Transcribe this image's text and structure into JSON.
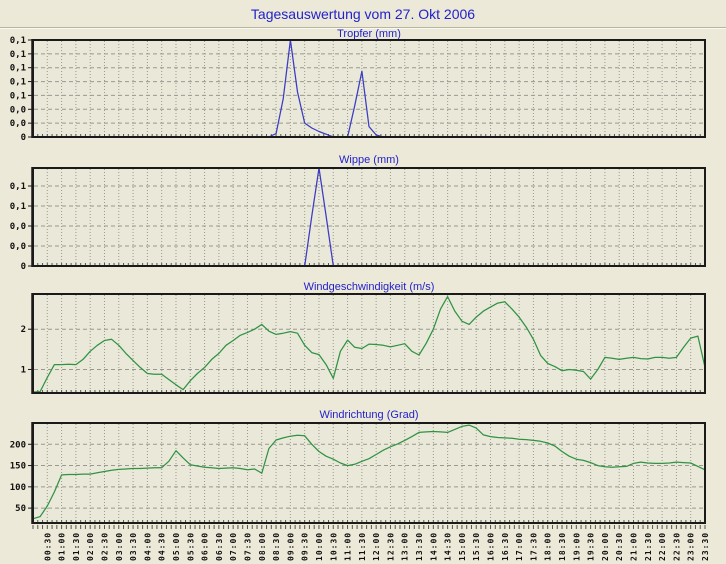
{
  "page": {
    "title": "Tagesauswertung vom 27. Okt 2006"
  },
  "colors": {
    "background": "#ece9d8",
    "plot_background": "#e9e8d9",
    "frame": "#1a1a1a",
    "grid": "#99998f",
    "minor_tick": "#55544a",
    "rain_line": "#3b3bc4",
    "wind_line": "#2f9342",
    "title_blue": "#2222cc",
    "tick_text": "#111111"
  },
  "x_axis": {
    "start": "00:00",
    "end": "23:30",
    "label_step_minutes": 30,
    "minor_tick_minutes": 10,
    "labels": [
      "00:30",
      "01:00",
      "01:30",
      "02:00",
      "02:30",
      "03:00",
      "03:30",
      "04:00",
      "04:30",
      "05:00",
      "05:30",
      "06:00",
      "06:30",
      "07:00",
      "07:30",
      "08:00",
      "08:30",
      "09:00",
      "09:30",
      "10:00",
      "10:30",
      "11:00",
      "11:30",
      "12:00",
      "12:30",
      "13:00",
      "13:30",
      "14:00",
      "14:30",
      "15:00",
      "15:30",
      "16:00",
      "16:30",
      "17:00",
      "17:30",
      "18:00",
      "18:30",
      "19:00",
      "19:30",
      "20:00",
      "20:30",
      "21:00",
      "21:30",
      "22:00",
      "22:30",
      "23:00",
      "23:30"
    ]
  },
  "chart_data": [
    {
      "type": "line",
      "id": "tropfer",
      "title": "Tropfer (mm)",
      "color": "#3b3bc4",
      "ylim": [
        0,
        0.14
      ],
      "y_ticks": [
        {
          "value": 0.14,
          "label": "0,1"
        },
        {
          "value": 0.12,
          "label": "0,1"
        },
        {
          "value": 0.1,
          "label": "0,1"
        },
        {
          "value": 0.08,
          "label": "0,1"
        },
        {
          "value": 0.06,
          "label": "0,1"
        },
        {
          "value": 0.04,
          "label": "0,0"
        },
        {
          "value": 0.02,
          "label": "0,0"
        },
        {
          "value": 0,
          "label": "0"
        }
      ],
      "x_start": "00:00",
      "x_step_minutes": 15,
      "values": [
        0,
        0,
        0,
        0,
        0,
        0,
        0,
        0,
        0,
        0,
        0,
        0,
        0,
        0,
        0,
        0,
        0,
        0,
        0,
        0,
        0,
        0,
        0,
        0,
        0,
        0,
        0,
        0,
        0,
        0,
        0,
        0,
        0,
        0,
        0.005,
        0.055,
        0.14,
        0.065,
        0.02,
        0.013,
        0.008,
        0.004,
        0,
        0,
        0,
        0.045,
        0.095,
        0.015,
        0.003,
        0,
        0,
        0,
        0,
        0,
        0,
        0,
        0,
        0,
        0,
        0,
        0,
        0,
        0,
        0,
        0,
        0,
        0,
        0,
        0,
        0,
        0,
        0,
        0,
        0,
        0,
        0,
        0,
        0,
        0,
        0,
        0,
        0,
        0,
        0,
        0,
        0,
        0,
        0,
        0,
        0,
        0,
        0,
        0,
        0,
        0
      ]
    },
    {
      "type": "line",
      "id": "wippe",
      "title": "Wippe (mm)",
      "color": "#3b3bc4",
      "ylim": [
        0,
        0.098
      ],
      "y_ticks": [
        {
          "value": 0.08,
          "label": "0,1"
        },
        {
          "value": 0.06,
          "label": "0,1"
        },
        {
          "value": 0.04,
          "label": "0,0"
        },
        {
          "value": 0.02,
          "label": "0,0"
        },
        {
          "value": 0,
          "label": "0"
        }
      ],
      "x_start": "00:00",
      "x_step_minutes": 15,
      "values": [
        0,
        0,
        0,
        0,
        0,
        0,
        0,
        0,
        0,
        0,
        0,
        0,
        0,
        0,
        0,
        0,
        0,
        0,
        0,
        0,
        0,
        0,
        0,
        0,
        0,
        0,
        0,
        0,
        0,
        0,
        0,
        0,
        0,
        0,
        0,
        0,
        0,
        0,
        0,
        0.05,
        0.098,
        0.05,
        0,
        0,
        0,
        0,
        0,
        0,
        0,
        0,
        0,
        0,
        0,
        0,
        0,
        0,
        0,
        0,
        0,
        0,
        0,
        0,
        0,
        0,
        0,
        0,
        0,
        0,
        0,
        0,
        0,
        0,
        0,
        0,
        0,
        0,
        0,
        0,
        0,
        0,
        0,
        0,
        0,
        0,
        0,
        0,
        0,
        0,
        0,
        0,
        0,
        0,
        0,
        0,
        0
      ]
    },
    {
      "type": "line",
      "id": "windgeschwindigkeit",
      "title": "Windgeschwindigkeit (m/s)",
      "color": "#2f9342",
      "ylim": [
        0.415,
        2.875
      ],
      "y_ticks": [
        {
          "value": 2,
          "label": "2"
        },
        {
          "value": 1,
          "label": "1"
        }
      ],
      "x_start": "00:00",
      "x_step_minutes": 15,
      "values": [
        0.44,
        0.45,
        0.8,
        1.12,
        1.12,
        1.13,
        1.12,
        1.25,
        1.45,
        1.6,
        1.72,
        1.75,
        1.6,
        1.4,
        1.22,
        1.05,
        0.9,
        0.88,
        0.88,
        0.75,
        0.62,
        0.5,
        0.72,
        0.9,
        1.05,
        1.25,
        1.4,
        1.6,
        1.72,
        1.85,
        1.92,
        2.0,
        2.12,
        1.95,
        1.87,
        1.9,
        1.94,
        1.9,
        1.6,
        1.42,
        1.37,
        1.12,
        0.78,
        1.45,
        1.73,
        1.55,
        1.52,
        1.63,
        1.62,
        1.6,
        1.56,
        1.6,
        1.64,
        1.45,
        1.36,
        1.65,
        2.0,
        2.5,
        2.81,
        2.45,
        2.2,
        2.12,
        2.3,
        2.45,
        2.55,
        2.65,
        2.68,
        2.5,
        2.3,
        2.05,
        1.75,
        1.35,
        1.15,
        1.07,
        0.97,
        1.0,
        0.98,
        0.95,
        0.76,
        1.0,
        1.3,
        1.28,
        1.25,
        1.28,
        1.3,
        1.27,
        1.26,
        1.3,
        1.3,
        1.28,
        1.3,
        1.55,
        1.78,
        1.83,
        1.05
      ]
    },
    {
      "type": "line",
      "id": "windrichtung",
      "title": "Windrichtung (Grad)",
      "color": "#2f9342",
      "ylim": [
        15,
        250
      ],
      "y_ticks": [
        {
          "value": 200,
          "label": "200"
        },
        {
          "value": 150,
          "label": "150"
        },
        {
          "value": 100,
          "label": "100"
        },
        {
          "value": 50,
          "label": "50"
        }
      ],
      "x_start": "00:00",
      "x_step_minutes": 15,
      "values": [
        25,
        30,
        55,
        88,
        128,
        129,
        129,
        130,
        130,
        133,
        136,
        139,
        141,
        142,
        143,
        143,
        144,
        145,
        145,
        160,
        185,
        168,
        152,
        149,
        146,
        145,
        143,
        144,
        145,
        143,
        140,
        142,
        132,
        190,
        210,
        215,
        219,
        221,
        220,
        200,
        183,
        172,
        165,
        156,
        150,
        153,
        160,
        166,
        176,
        186,
        194,
        201,
        209,
        218,
        228,
        229,
        230,
        229,
        228,
        235,
        242,
        245,
        238,
        222,
        218,
        216,
        215,
        214,
        212,
        211,
        209,
        207,
        203,
        196,
        183,
        172,
        165,
        162,
        157,
        150,
        147,
        146,
        147,
        148,
        155,
        158,
        156,
        155,
        155,
        156,
        158,
        157,
        156,
        148,
        140
      ]
    }
  ]
}
